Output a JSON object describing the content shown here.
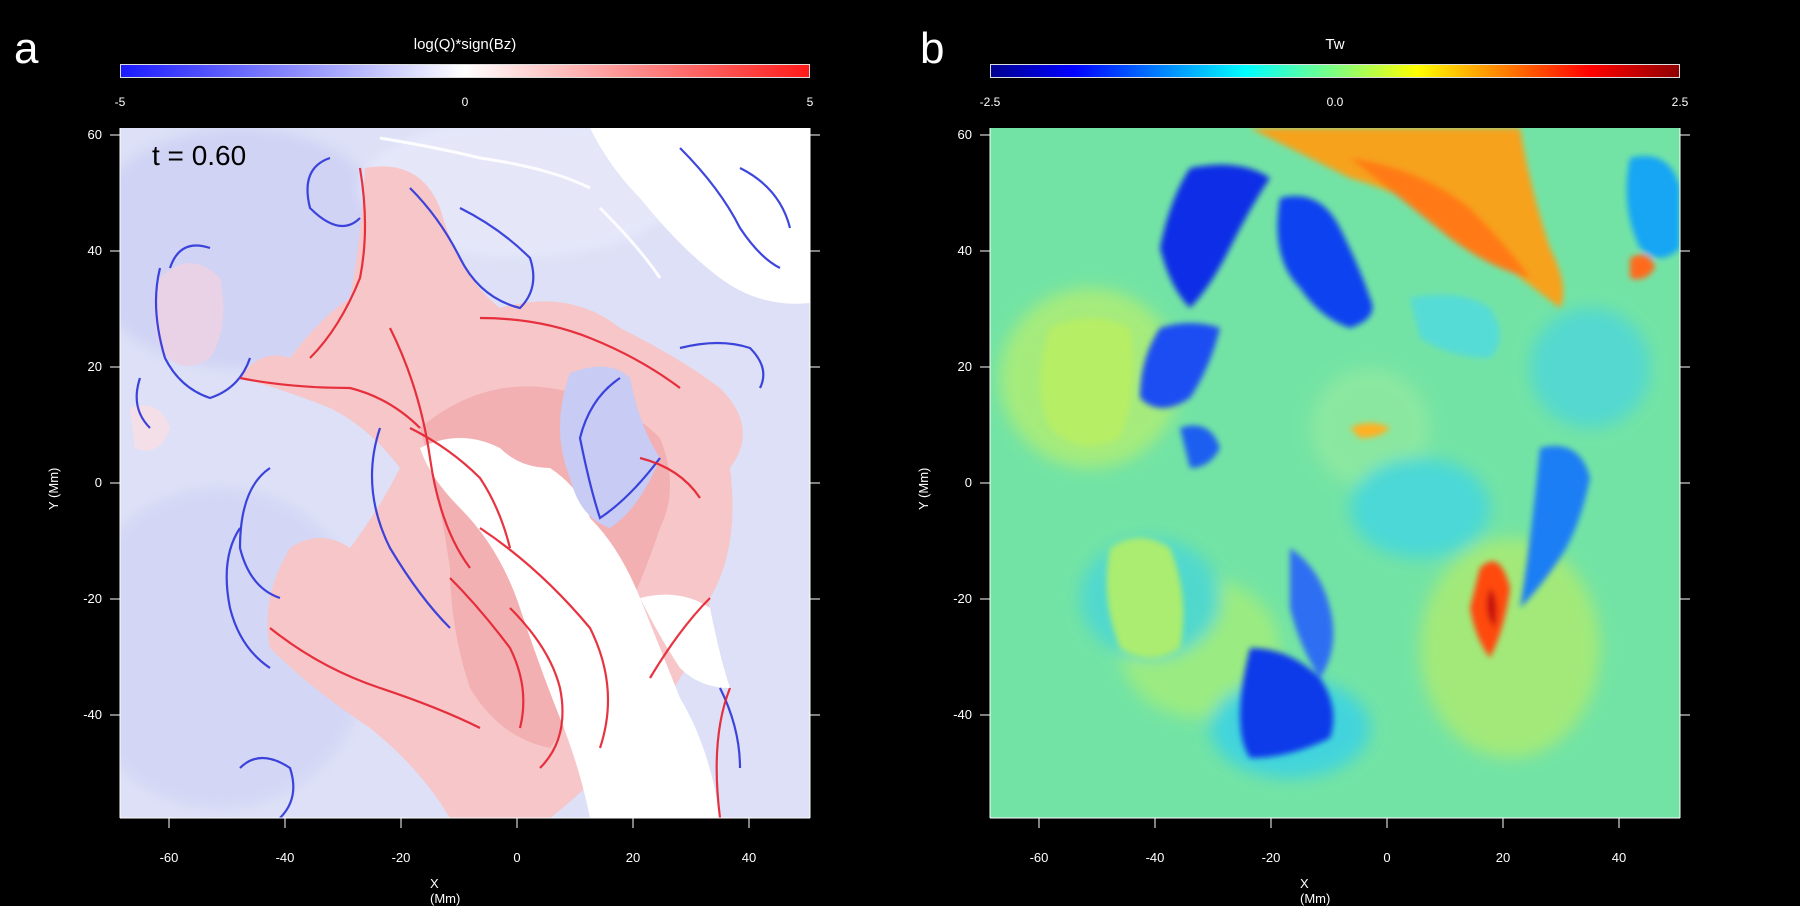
{
  "panel_a": {
    "letter": "a",
    "colorbar_title": "log(Q)*sign(Bz)",
    "colorbar_ticks": [
      "-5",
      "0",
      "5"
    ],
    "colors": {
      "neg": "#1a1aff",
      "mid": "#ffffff",
      "pos": "#ff1a1a"
    },
    "time_label": "t = 0.60",
    "xlabel": "X (Mm)",
    "ylabel": "Y (Mm)",
    "x_ticks": [
      "-60",
      "-40",
      "-20",
      "0",
      "20",
      "40"
    ],
    "y_ticks": [
      "60",
      "40",
      "20",
      "0",
      "-20",
      "-40"
    ]
  },
  "panel_b": {
    "letter": "b",
    "colorbar_title": "Tw",
    "colorbar_ticks": [
      "-2.5",
      "0.0",
      "2.5"
    ],
    "colors": {
      "low": "#00008f",
      "mid": "#7fff9f",
      "high": "#8f0000"
    },
    "xlabel": "X (Mm)",
    "ylabel": "Y (Mm)",
    "x_ticks": [
      "-60",
      "-40",
      "-20",
      "0",
      "20",
      "40"
    ],
    "y_ticks": [
      "60",
      "40",
      "20",
      "0",
      "-20",
      "-40"
    ]
  }
}
